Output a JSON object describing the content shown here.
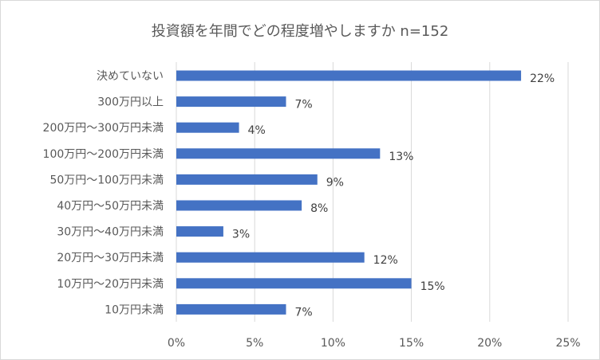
{
  "chart_data": {
    "type": "bar",
    "orientation": "horizontal",
    "title": "投資額を年間でどの程度増やしますか n=152",
    "categories": [
      "決めていない",
      "300万円以上",
      "200万円～300万円未満",
      "100万円～200万円未満",
      "50万円～100万円未満",
      "40万円～50万円未満",
      "30万円～40万円未満",
      "20万円～30万円未満",
      "10万円～20万円未満",
      "10万円未満"
    ],
    "values": [
      22,
      7,
      4,
      13,
      9,
      8,
      3,
      12,
      15,
      7
    ],
    "data_labels": [
      "22%",
      "7%",
      "4%",
      "13%",
      "9%",
      "8%",
      "3%",
      "12%",
      "15%",
      "7%"
    ],
    "xlim": [
      0,
      25
    ],
    "xticks": [
      0,
      5,
      10,
      15,
      20,
      25
    ],
    "xtick_labels": [
      "0%",
      "5%",
      "10%",
      "15%",
      "20%",
      "25%"
    ],
    "grid": "vertical",
    "legend": "none",
    "bar_color": "#4472c4",
    "grid_color": "#d9d9d9"
  }
}
